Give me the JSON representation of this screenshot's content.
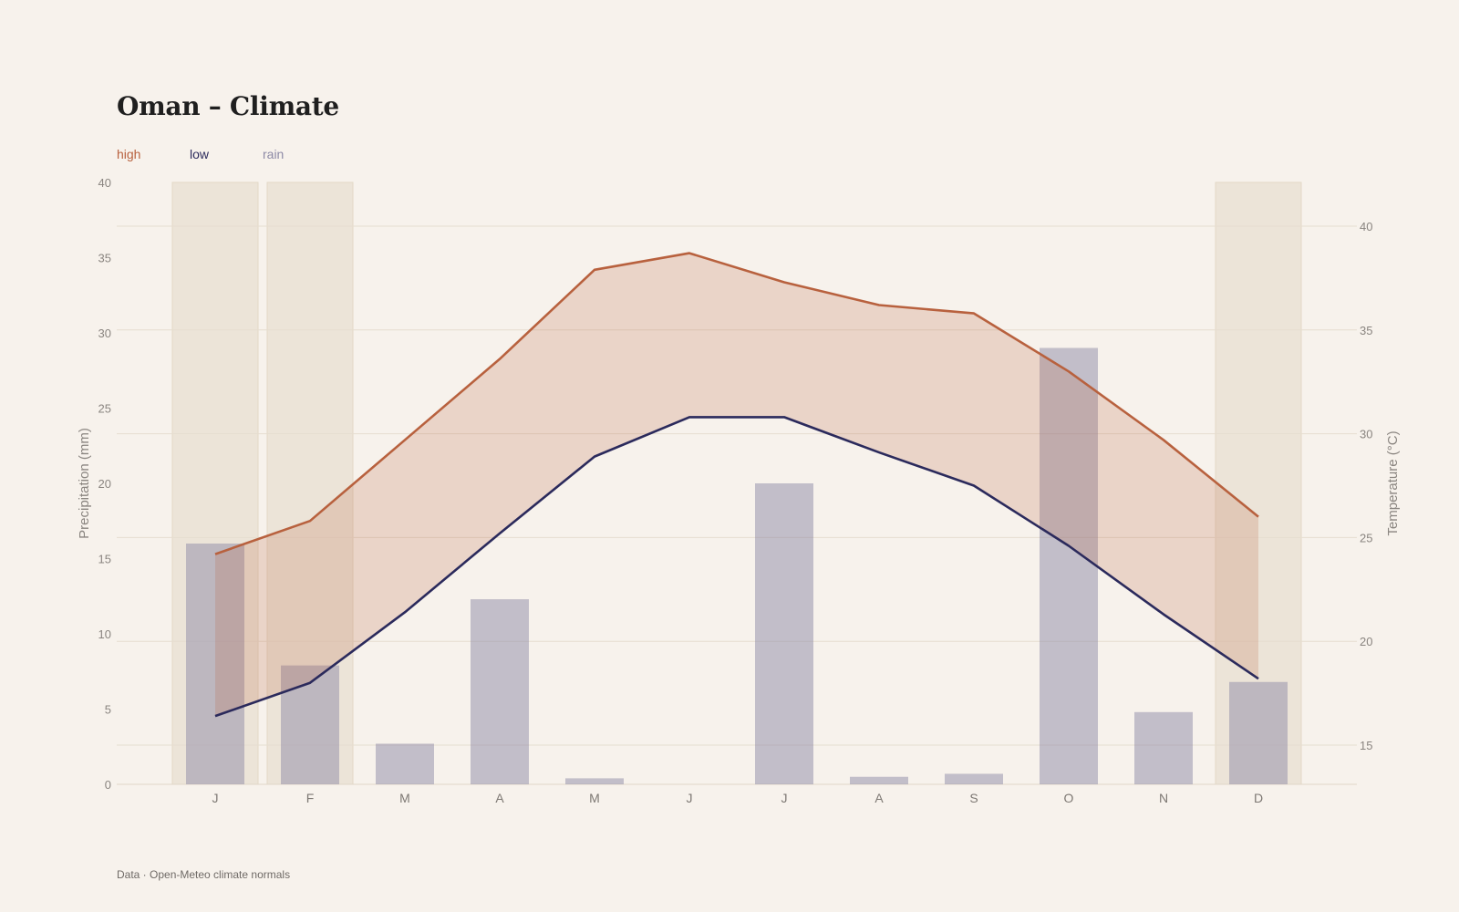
{
  "title": "Oman – Climate",
  "footer": "Data · Open-Meteo climate normals",
  "colors": {
    "background": "#f7f2ec",
    "high": "#b8613e",
    "low": "#2b2a5c",
    "rain": "#8d8aa6",
    "dry_band": "#ece4d8"
  },
  "legend": {
    "high": "high",
    "low": "low",
    "rain": "rain"
  },
  "chart_data": {
    "type": "bar+line",
    "categories": [
      "J",
      "F",
      "M",
      "A",
      "M",
      "J",
      "J",
      "A",
      "S",
      "O",
      "N",
      "D"
    ],
    "precipitation_mm": [
      16,
      7.9,
      2.7,
      12.3,
      0.4,
      0,
      20,
      0.5,
      0.7,
      29,
      4.8,
      6.8
    ],
    "temperature_high_c": [
      24.2,
      25.8,
      29.7,
      33.6,
      37.9,
      38.7,
      37.3,
      36.2,
      35.8,
      33.0,
      29.7,
      26.0
    ],
    "temperature_low_c": [
      16.4,
      18.0,
      21.4,
      25.2,
      28.9,
      30.8,
      30.8,
      29.1,
      27.5,
      24.6,
      21.3,
      18.2
    ],
    "dry_months": [
      0,
      1,
      11
    ],
    "left_axis": {
      "label": "Precipitation (mm)",
      "range": [
        0,
        40
      ],
      "ticks": [
        0,
        5,
        10,
        15,
        20,
        25,
        30,
        35,
        40
      ]
    },
    "right_axis": {
      "label": "Temperature (°C)",
      "range": [
        13,
        42
      ],
      "ticks": [
        15,
        20,
        25,
        30,
        35,
        40
      ]
    },
    "grid": true,
    "legend_position": "top-left"
  }
}
